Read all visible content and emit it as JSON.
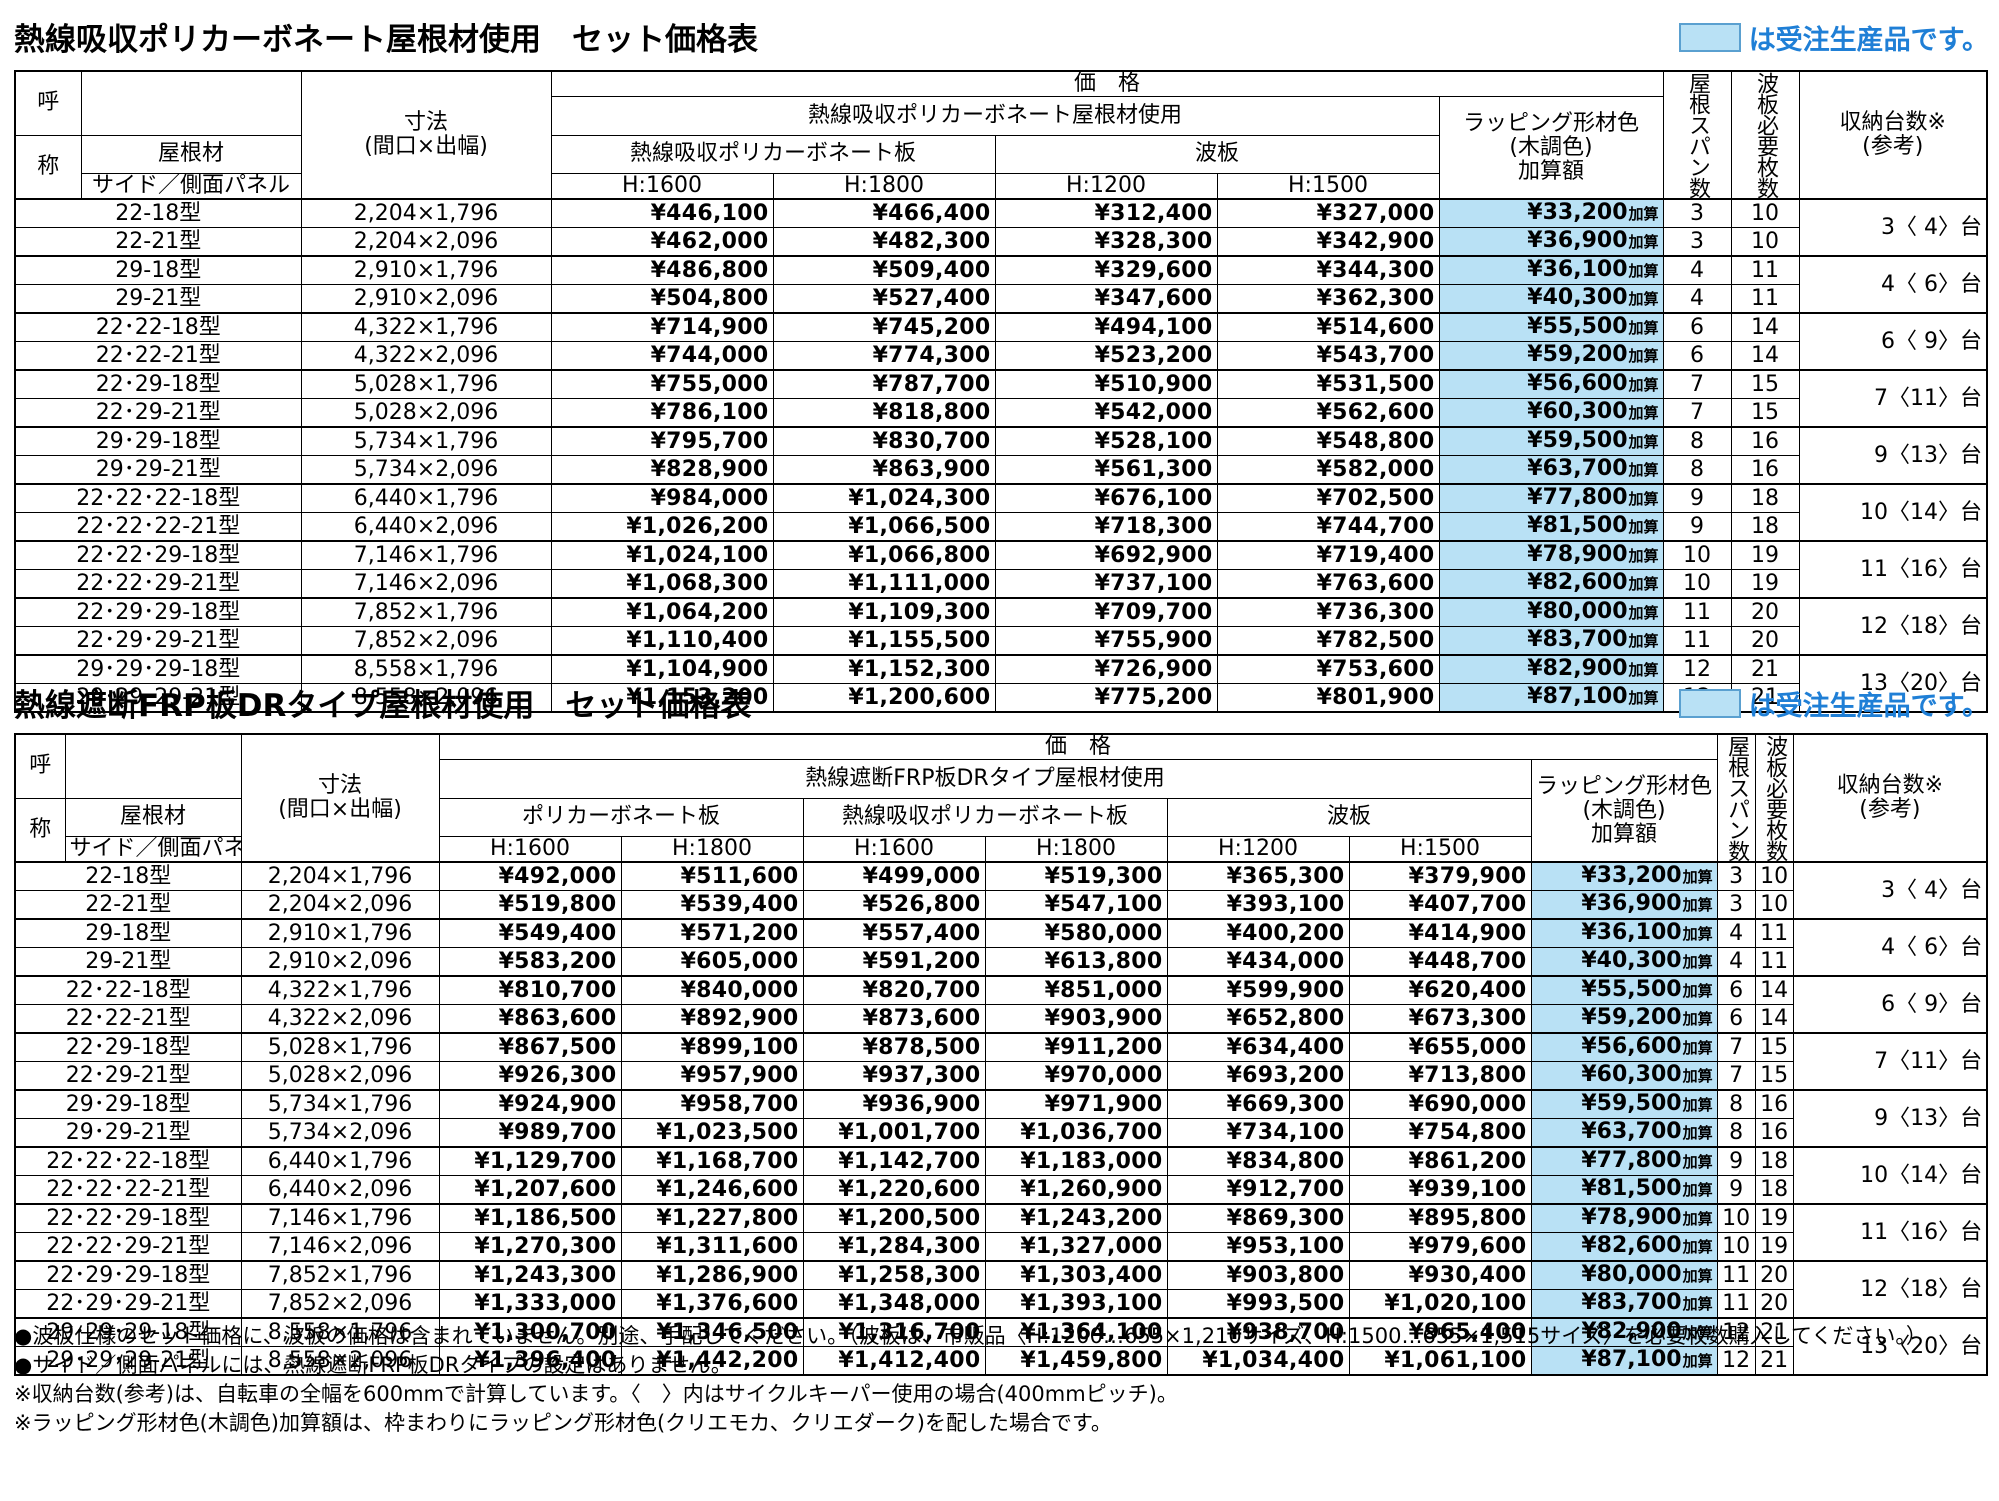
{
  "section1": {
    "title": "熱線吸収ポリカーボネート屋根材使用　セット価格表",
    "legend": "は受注生産品です。",
    "headers": {
      "call_top": "呼",
      "call_bottom": "称",
      "roof_material": "屋根材",
      "side_panel_1": "サイド／",
      "side_panel_2": "側面パネル",
      "dimension": "寸法",
      "dimension_sub": "(間口×出幅)",
      "price": "価　格",
      "price_group": "熱線吸収ポリカーボネート屋根材使用",
      "sub_a": "熱線吸収ポリカーボネート板",
      "sub_b": "波板",
      "h1600": "H:1600",
      "h1800": "H:1800",
      "h1200": "H:1200",
      "h1500": "H:1500",
      "wrap_1": "ラッピング形材色",
      "wrap_2": "(木調色)",
      "wrap_3": "加算額",
      "span": "屋根スパン数",
      "wave": "波板必要枚数",
      "capacity": "収納台数※",
      "capacity_sub": "(参考)"
    },
    "rows": [
      {
        "model": "22-18型",
        "size": "2,204×1,796",
        "p1": "¥446,100",
        "p2": "¥466,400",
        "p3": "¥312,400",
        "p4": "¥327,000",
        "wrap": "¥33,200",
        "span": "3",
        "wave": "10",
        "cap": "3〈 4〉台"
      },
      {
        "model": "22-21型",
        "size": "2,204×2,096",
        "p1": "¥462,000",
        "p2": "¥482,300",
        "p3": "¥328,300",
        "p4": "¥342,900",
        "wrap": "¥36,900",
        "span": "3",
        "wave": "10"
      },
      {
        "model": "29-18型",
        "size": "2,910×1,796",
        "p1": "¥486,800",
        "p2": "¥509,400",
        "p3": "¥329,600",
        "p4": "¥344,300",
        "wrap": "¥36,100",
        "span": "4",
        "wave": "11",
        "cap": "4〈 6〉台"
      },
      {
        "model": "29-21型",
        "size": "2,910×2,096",
        "p1": "¥504,800",
        "p2": "¥527,400",
        "p3": "¥347,600",
        "p4": "¥362,300",
        "wrap": "¥40,300",
        "span": "4",
        "wave": "11"
      },
      {
        "model": "22･22-18型",
        "size": "4,322×1,796",
        "p1": "¥714,900",
        "p2": "¥745,200",
        "p3": "¥494,100",
        "p4": "¥514,600",
        "wrap": "¥55,500",
        "span": "6",
        "wave": "14",
        "cap": "6〈 9〉台"
      },
      {
        "model": "22･22-21型",
        "size": "4,322×2,096",
        "p1": "¥744,000",
        "p2": "¥774,300",
        "p3": "¥523,200",
        "p4": "¥543,700",
        "wrap": "¥59,200",
        "span": "6",
        "wave": "14"
      },
      {
        "model": "22･29-18型",
        "size": "5,028×1,796",
        "p1": "¥755,000",
        "p2": "¥787,700",
        "p3": "¥510,900",
        "p4": "¥531,500",
        "wrap": "¥56,600",
        "span": "7",
        "wave": "15",
        "cap": "7〈11〉台"
      },
      {
        "model": "22･29-21型",
        "size": "5,028×2,096",
        "p1": "¥786,100",
        "p2": "¥818,800",
        "p3": "¥542,000",
        "p4": "¥562,600",
        "wrap": "¥60,300",
        "span": "7",
        "wave": "15"
      },
      {
        "model": "29･29-18型",
        "size": "5,734×1,796",
        "p1": "¥795,700",
        "p2": "¥830,700",
        "p3": "¥528,100",
        "p4": "¥548,800",
        "wrap": "¥59,500",
        "span": "8",
        "wave": "16",
        "cap": "9〈13〉台"
      },
      {
        "model": "29･29-21型",
        "size": "5,734×2,096",
        "p1": "¥828,900",
        "p2": "¥863,900",
        "p3": "¥561,300",
        "p4": "¥582,000",
        "wrap": "¥63,700",
        "span": "8",
        "wave": "16"
      },
      {
        "model": "22･22･22-18型",
        "size": "6,440×1,796",
        "p1": "¥984,000",
        "p2": "¥1,024,300",
        "p3": "¥676,100",
        "p4": "¥702,500",
        "wrap": "¥77,800",
        "span": "9",
        "wave": "18",
        "cap": "10〈14〉台"
      },
      {
        "model": "22･22･22-21型",
        "size": "6,440×2,096",
        "p1": "¥1,026,200",
        "p2": "¥1,066,500",
        "p3": "¥718,300",
        "p4": "¥744,700",
        "wrap": "¥81,500",
        "span": "9",
        "wave": "18"
      },
      {
        "model": "22･22･29-18型",
        "size": "7,146×1,796",
        "p1": "¥1,024,100",
        "p2": "¥1,066,800",
        "p3": "¥692,900",
        "p4": "¥719,400",
        "wrap": "¥78,900",
        "span": "10",
        "wave": "19",
        "cap": "11〈16〉台"
      },
      {
        "model": "22･22･29-21型",
        "size": "7,146×2,096",
        "p1": "¥1,068,300",
        "p2": "¥1,111,000",
        "p3": "¥737,100",
        "p4": "¥763,600",
        "wrap": "¥82,600",
        "span": "10",
        "wave": "19"
      },
      {
        "model": "22･29･29-18型",
        "size": "7,852×1,796",
        "p1": "¥1,064,200",
        "p2": "¥1,109,300",
        "p3": "¥709,700",
        "p4": "¥736,300",
        "wrap": "¥80,000",
        "span": "11",
        "wave": "20",
        "cap": "12〈18〉台"
      },
      {
        "model": "22･29･29-21型",
        "size": "7,852×2,096",
        "p1": "¥1,110,400",
        "p2": "¥1,155,500",
        "p3": "¥755,900",
        "p4": "¥782,500",
        "wrap": "¥83,700",
        "span": "11",
        "wave": "20"
      },
      {
        "model": "29･29･29-18型",
        "size": "8,558×1,796",
        "p1": "¥1,104,900",
        "p2": "¥1,152,300",
        "p3": "¥726,900",
        "p4": "¥753,600",
        "wrap": "¥82,900",
        "span": "12",
        "wave": "21",
        "cap": "13〈20〉台"
      },
      {
        "model": "29･29･29-21型",
        "size": "8,558×2,096",
        "p1": "¥1,153,200",
        "p2": "¥1,200,600",
        "p3": "¥775,200",
        "p4": "¥801,900",
        "wrap": "¥87,100",
        "span": "12",
        "wave": "21"
      }
    ]
  },
  "section2": {
    "title": "熱線遮断FRP板DRタイプ屋根材使用　セット価格表",
    "legend": "は受注生産品です。",
    "headers": {
      "call_top": "呼",
      "call_bottom": "称",
      "roof_material": "屋根材",
      "side_panel_1": "サイド／",
      "side_panel_2": "側面パネル",
      "dimension": "寸法",
      "dimension_sub": "(間口×出幅)",
      "price": "価　格",
      "price_group": "熱線遮断FRP板DRタイプ屋根材使用",
      "sub_a": "ポリカーボネート板",
      "sub_b": "熱線吸収ポリカーボネート板",
      "sub_c": "波板",
      "h1600": "H:1600",
      "h1800": "H:1800",
      "h1200": "H:1200",
      "h1500": "H:1500",
      "wrap_1": "ラッピング形材色",
      "wrap_2": "(木調色)",
      "wrap_3": "加算額",
      "span": "屋根スパン数",
      "wave": "波板必要枚数",
      "capacity": "収納台数※",
      "capacity_sub": "(参考)"
    },
    "rows": [
      {
        "model": "22-18型",
        "size": "2,204×1,796",
        "p1": "¥492,000",
        "p2": "¥511,600",
        "p3": "¥499,000",
        "p4": "¥519,300",
        "p5": "¥365,300",
        "p6": "¥379,900",
        "wrap": "¥33,200",
        "span": "3",
        "wave": "10",
        "cap": "3〈 4〉台"
      },
      {
        "model": "22-21型",
        "size": "2,204×2,096",
        "p1": "¥519,800",
        "p2": "¥539,400",
        "p3": "¥526,800",
        "p4": "¥547,100",
        "p5": "¥393,100",
        "p6": "¥407,700",
        "wrap": "¥36,900",
        "span": "3",
        "wave": "10"
      },
      {
        "model": "29-18型",
        "size": "2,910×1,796",
        "p1": "¥549,400",
        "p2": "¥571,200",
        "p3": "¥557,400",
        "p4": "¥580,000",
        "p5": "¥400,200",
        "p6": "¥414,900",
        "wrap": "¥36,100",
        "span": "4",
        "wave": "11",
        "cap": "4〈 6〉台"
      },
      {
        "model": "29-21型",
        "size": "2,910×2,096",
        "p1": "¥583,200",
        "p2": "¥605,000",
        "p3": "¥591,200",
        "p4": "¥613,800",
        "p5": "¥434,000",
        "p6": "¥448,700",
        "wrap": "¥40,300",
        "span": "4",
        "wave": "11"
      },
      {
        "model": "22･22-18型",
        "size": "4,322×1,796",
        "p1": "¥810,700",
        "p2": "¥840,000",
        "p3": "¥820,700",
        "p4": "¥851,000",
        "p5": "¥599,900",
        "p6": "¥620,400",
        "wrap": "¥55,500",
        "span": "6",
        "wave": "14",
        "cap": "6〈 9〉台"
      },
      {
        "model": "22･22-21型",
        "size": "4,322×2,096",
        "p1": "¥863,600",
        "p2": "¥892,900",
        "p3": "¥873,600",
        "p4": "¥903,900",
        "p5": "¥652,800",
        "p6": "¥673,300",
        "wrap": "¥59,200",
        "span": "6",
        "wave": "14"
      },
      {
        "model": "22･29-18型",
        "size": "5,028×1,796",
        "p1": "¥867,500",
        "p2": "¥899,100",
        "p3": "¥878,500",
        "p4": "¥911,200",
        "p5": "¥634,400",
        "p6": "¥655,000",
        "wrap": "¥56,600",
        "span": "7",
        "wave": "15",
        "cap": "7〈11〉台"
      },
      {
        "model": "22･29-21型",
        "size": "5,028×2,096",
        "p1": "¥926,300",
        "p2": "¥957,900",
        "p3": "¥937,300",
        "p4": "¥970,000",
        "p5": "¥693,200",
        "p6": "¥713,800",
        "wrap": "¥60,300",
        "span": "7",
        "wave": "15"
      },
      {
        "model": "29･29-18型",
        "size": "5,734×1,796",
        "p1": "¥924,900",
        "p2": "¥958,700",
        "p3": "¥936,900",
        "p4": "¥971,900",
        "p5": "¥669,300",
        "p6": "¥690,000",
        "wrap": "¥59,500",
        "span": "8",
        "wave": "16",
        "cap": "9〈13〉台"
      },
      {
        "model": "29･29-21型",
        "size": "5,734×2,096",
        "p1": "¥989,700",
        "p2": "¥1,023,500",
        "p3": "¥1,001,700",
        "p4": "¥1,036,700",
        "p5": "¥734,100",
        "p6": "¥754,800",
        "wrap": "¥63,700",
        "span": "8",
        "wave": "16"
      },
      {
        "model": "22･22･22-18型",
        "size": "6,440×1,796",
        "p1": "¥1,129,700",
        "p2": "¥1,168,700",
        "p3": "¥1,142,700",
        "p4": "¥1,183,000",
        "p5": "¥834,800",
        "p6": "¥861,200",
        "wrap": "¥77,800",
        "span": "9",
        "wave": "18",
        "cap": "10〈14〉台"
      },
      {
        "model": "22･22･22-21型",
        "size": "6,440×2,096",
        "p1": "¥1,207,600",
        "p2": "¥1,246,600",
        "p3": "¥1,220,600",
        "p4": "¥1,260,900",
        "p5": "¥912,700",
        "p6": "¥939,100",
        "wrap": "¥81,500",
        "span": "9",
        "wave": "18"
      },
      {
        "model": "22･22･29-18型",
        "size": "7,146×1,796",
        "p1": "¥1,186,500",
        "p2": "¥1,227,800",
        "p3": "¥1,200,500",
        "p4": "¥1,243,200",
        "p5": "¥869,300",
        "p6": "¥895,800",
        "wrap": "¥78,900",
        "span": "10",
        "wave": "19",
        "cap": "11〈16〉台"
      },
      {
        "model": "22･22･29-21型",
        "size": "7,146×2,096",
        "p1": "¥1,270,300",
        "p2": "¥1,311,600",
        "p3": "¥1,284,300",
        "p4": "¥1,327,000",
        "p5": "¥953,100",
        "p6": "¥979,600",
        "wrap": "¥82,600",
        "span": "10",
        "wave": "19"
      },
      {
        "model": "22･29･29-18型",
        "size": "7,852×1,796",
        "p1": "¥1,243,300",
        "p2": "¥1,286,900",
        "p3": "¥1,258,300",
        "p4": "¥1,303,400",
        "p5": "¥903,800",
        "p6": "¥930,400",
        "wrap": "¥80,000",
        "span": "11",
        "wave": "20",
        "cap": "12〈18〉台"
      },
      {
        "model": "22･29･29-21型",
        "size": "7,852×2,096",
        "p1": "¥1,333,000",
        "p2": "¥1,376,600",
        "p3": "¥1,348,000",
        "p4": "¥1,393,100",
        "p5": "¥993,500",
        "p6": "¥1,020,100",
        "wrap": "¥83,700",
        "span": "11",
        "wave": "20"
      },
      {
        "model": "29･29･29-18型",
        "size": "8,558×1,796",
        "p1": "¥1,300,700",
        "p2": "¥1,346,500",
        "p3": "¥1,316,700",
        "p4": "¥1,364,100",
        "p5": "¥938,700",
        "p6": "¥965,400",
        "wrap": "¥82,900",
        "span": "12",
        "wave": "21",
        "cap": "13〈20〉台"
      },
      {
        "model": "29･29･29-21型",
        "size": "8,558×2,096",
        "p1": "¥1,396,400",
        "p2": "¥1,442,200",
        "p3": "¥1,412,400",
        "p4": "¥1,459,800",
        "p5": "¥1,034,400",
        "p6": "¥1,061,100",
        "wrap": "¥87,100",
        "span": "12",
        "wave": "21"
      }
    ]
  },
  "wrap_suffix": "加算",
  "colors": {
    "highlight": "#b9e1f5",
    "legend_text": "#1f7fd6"
  },
  "notes": [
    "●波板仕様のセット価格に、波板の価格は含まれていません。別途、手配してください。（波板は、市販品〈H:1200…655×1,210サイズ、H:1500…655×1,515サイズ〉を必要枚数購入してください。）",
    "●サイド／側面パネルには、熱線遮断FRP板DRタイプの設定はありません。",
    "※収納台数(参考)は、自転車の全幅を600mmで計算しています。〈　〉内はサイクルキーパー使用の場合(400mmピッチ)。",
    "※ラッピング形材色(木調色)加算額は、枠まわりにラッピング形材色(クリエモカ、クリエダーク)を配した場合です。"
  ]
}
